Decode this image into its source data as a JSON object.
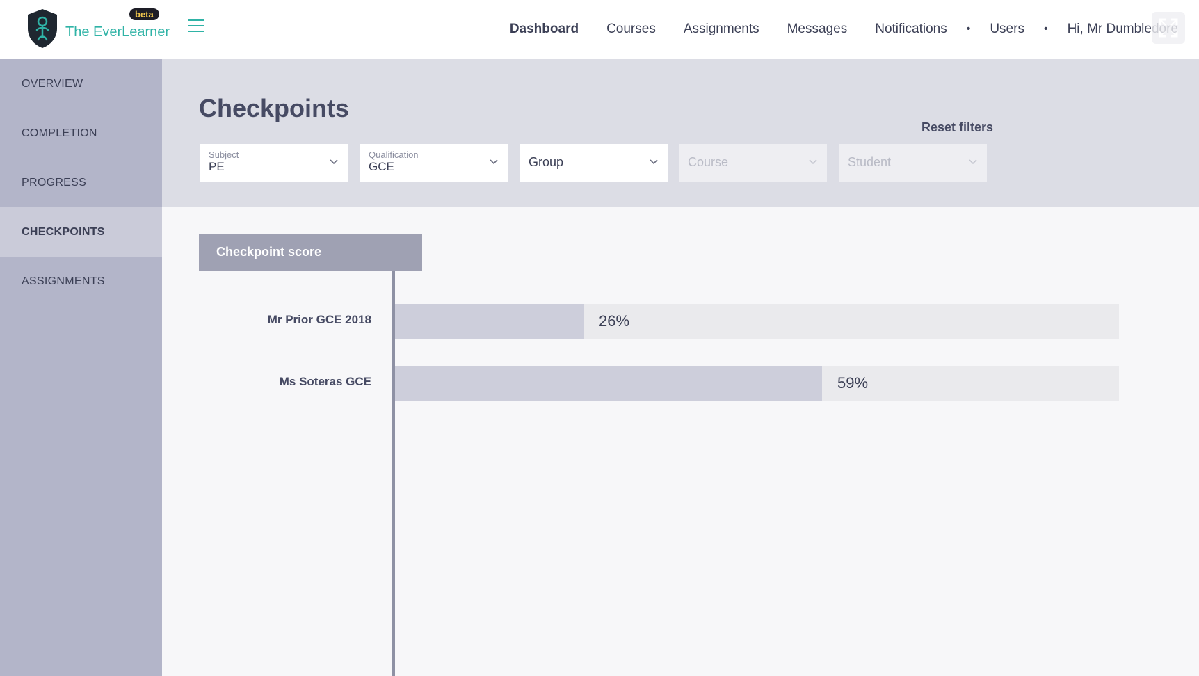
{
  "header": {
    "brand": "The EverLearner",
    "beta_badge": "beta",
    "nav": [
      {
        "label": "Dashboard",
        "active": true
      },
      {
        "label": "Courses"
      },
      {
        "label": "Assignments"
      },
      {
        "label": "Messages"
      },
      {
        "label": "Notifications"
      },
      {
        "label": "Users"
      }
    ],
    "greeting": "Hi, Mr Dumbledore"
  },
  "sidebar": {
    "items": [
      {
        "label": "OVERVIEW"
      },
      {
        "label": "COMPLETION"
      },
      {
        "label": "PROGRESS"
      },
      {
        "label": "CHECKPOINTS",
        "active": true
      },
      {
        "label": "ASSIGNMENTS"
      }
    ]
  },
  "page": {
    "title": "Checkpoints",
    "reset_filters": "Reset filters"
  },
  "filters": {
    "subject": {
      "label": "Subject",
      "value": "PE"
    },
    "qualification": {
      "label": "Qualification",
      "value": "GCE"
    },
    "group": {
      "placeholder": "Group"
    },
    "course": {
      "placeholder": "Course",
      "disabled": true
    },
    "student": {
      "placeholder": "Student",
      "disabled": true
    }
  },
  "chart_data": {
    "type": "bar",
    "title": "Checkpoint score",
    "orientation": "horizontal",
    "categories": [
      "Mr Prior GCE 2018",
      "Ms Soteras GCE"
    ],
    "values": [
      26,
      59
    ],
    "value_labels": [
      "26%",
      "59%"
    ],
    "xlim": [
      0,
      100
    ],
    "unit": "%"
  },
  "colors": {
    "accent": "#2fb3a6",
    "sidebar_bg": "#b3b5c9",
    "bar_fill": "#cdcedb",
    "bar_track": "#eaeaed"
  }
}
